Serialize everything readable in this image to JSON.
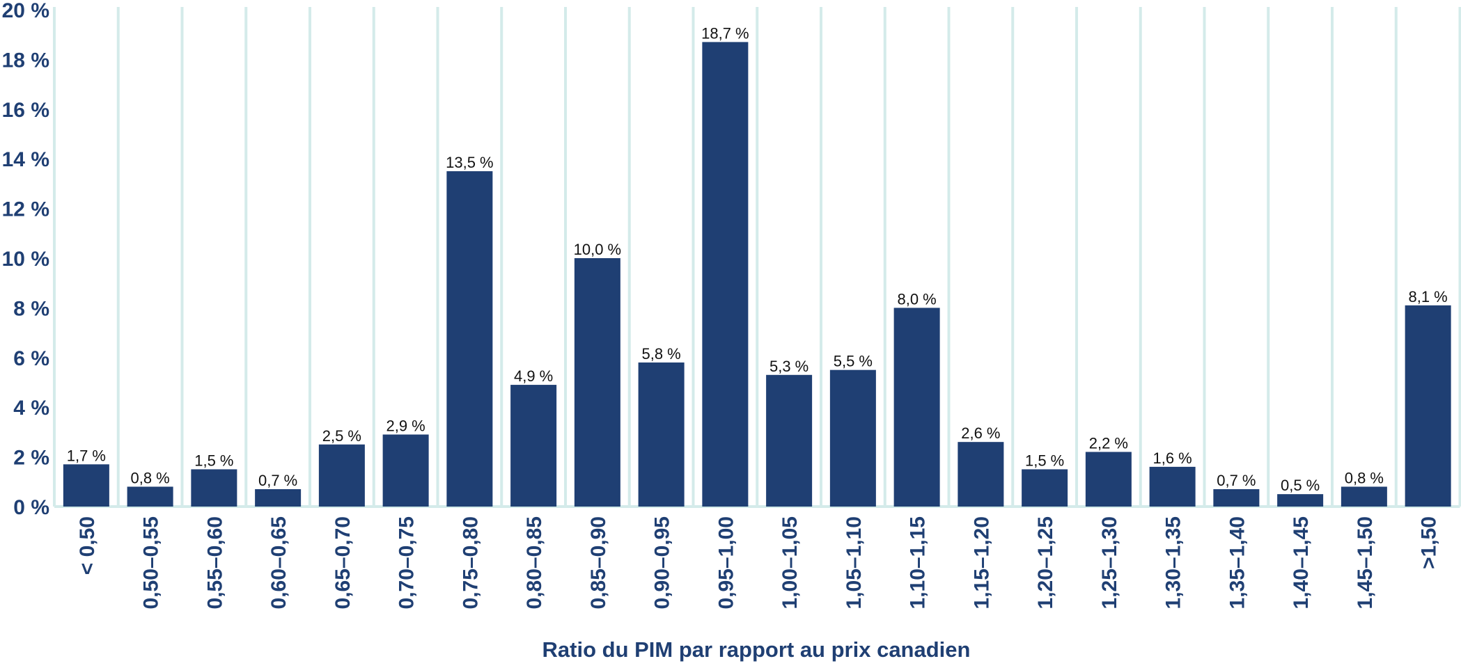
{
  "chart_data": {
    "type": "bar",
    "title": "",
    "xlabel": "Ratio du PIM par rapport au prix canadien",
    "ylabel": "",
    "ylim": [
      0,
      20
    ],
    "y_ticks": [
      0,
      2,
      4,
      6,
      8,
      10,
      12,
      14,
      16,
      18,
      20
    ],
    "y_tick_labels": [
      "0 %",
      "2 %",
      "4 %",
      "6 %",
      "8 %",
      "10 %",
      "12 %",
      "14 %",
      "16 %",
      "18 %",
      "20 %"
    ],
    "grid": true,
    "legend": "none",
    "bar_color": "#1f3f73",
    "grid_color": "#d4ebea",
    "categories": [
      "< 0,50",
      "0,50–0,55",
      "0,55–0,60",
      "0,60–0,65",
      "0,65–0,70",
      "0,70–0,75",
      "0,75–0,80",
      "0,80–0,85",
      "0,85–0,90",
      "0,90–0,95",
      "0,95–1,00",
      "1,00–1,05",
      "1,05–1,10",
      "1,10–1,15",
      "1,15–1,20",
      "1,20–1,25",
      "1,25–1,30",
      "1,30–1,35",
      "1,35–1,40",
      "1,40–1,45",
      "1,45–1,50",
      ">1,50"
    ],
    "values": [
      1.7,
      0.8,
      1.5,
      0.7,
      2.5,
      2.9,
      13.5,
      4.9,
      10.0,
      5.8,
      18.7,
      5.3,
      5.5,
      8.0,
      2.6,
      1.5,
      2.2,
      1.6,
      0.7,
      0.5,
      0.8,
      8.1
    ],
    "data_labels": [
      "1,7 %",
      "0,8 %",
      "1,5 %",
      "0,7 %",
      "2,5 %",
      "2,9 %",
      "13,5 %",
      "4,9 %",
      "10,0 %",
      "5,8 %",
      "18,7 %",
      "5,3 %",
      "5,5 %",
      "8,0 %",
      "2,6 %",
      "1,5 %",
      "2,2 %",
      "1,6 %",
      "0,7 %",
      "0,5 %",
      "0,8 %",
      "8,1 %"
    ]
  }
}
